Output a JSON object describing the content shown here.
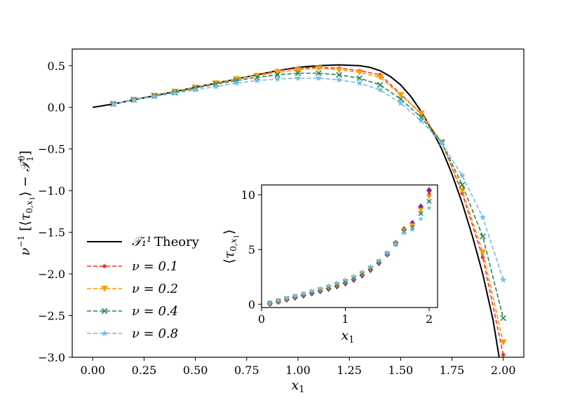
{
  "chart_data": [
    {
      "type": "line",
      "name": "main",
      "xlabel": "x₁",
      "ylabel": "ν⁻¹ [⟨τ₀,ₓ₁⟩ − 𝒯₁⁰]",
      "xlim": [
        -0.1,
        2.1
      ],
      "ylim": [
        -3.0,
        0.7
      ],
      "xticks": [
        0.0,
        0.25,
        0.5,
        0.75,
        1.0,
        1.25,
        1.5,
        1.75,
        2.0
      ],
      "xtick_labels": [
        "0.00",
        "0.25",
        "0.50",
        "0.75",
        "1.00",
        "1.25",
        "1.50",
        "1.75",
        "2.00"
      ],
      "yticks": [
        0.5,
        0.0,
        -0.5,
        -1.0,
        -1.5,
        -2.0,
        -2.5,
        -3.0
      ],
      "ytick_labels": [
        "0.5",
        "0.0",
        "−0.5",
        "−1.0",
        "−1.5",
        "−2.0",
        "−2.5",
        "−3.0"
      ],
      "theory": {
        "name": "𝒯₁¹ Theory",
        "legend_symbol": "𝒯₁¹",
        "legend_word": "Theory",
        "color": "#000000",
        "x": [
          0.0,
          0.1,
          0.2,
          0.3,
          0.4,
          0.5,
          0.6,
          0.7,
          0.8,
          0.9,
          1.0,
          1.1,
          1.2,
          1.3,
          1.35,
          1.4,
          1.45,
          1.5,
          1.55,
          1.6,
          1.65,
          1.7,
          1.75,
          1.8,
          1.85,
          1.9,
          1.95,
          1.98
        ],
        "y": [
          0.0,
          0.04,
          0.09,
          0.14,
          0.19,
          0.24,
          0.29,
          0.34,
          0.39,
          0.44,
          0.48,
          0.5,
          0.51,
          0.5,
          0.48,
          0.44,
          0.37,
          0.27,
          0.13,
          -0.05,
          -0.26,
          -0.5,
          -0.8,
          -1.15,
          -1.55,
          -2.0,
          -2.55,
          -3.0
        ]
      },
      "series": [
        {
          "name": "ν = 0.1",
          "legend_label": "ν = 0.1",
          "color": "#ee3322",
          "marker": "dot",
          "x": [
            0.1,
            0.2,
            0.3,
            0.4,
            0.5,
            0.6,
            0.7,
            0.8,
            0.9,
            1.0,
            1.1,
            1.2,
            1.3,
            1.4,
            1.5,
            1.6,
            1.7,
            1.8,
            1.9,
            2.0
          ],
          "y": [
            0.04,
            0.09,
            0.14,
            0.19,
            0.24,
            0.29,
            0.34,
            0.39,
            0.44,
            0.47,
            0.48,
            0.47,
            0.44,
            0.39,
            0.16,
            -0.08,
            -0.42,
            -1.03,
            -1.8,
            -2.97
          ]
        },
        {
          "name": "ν = 0.2",
          "legend_label": "ν = 0.2",
          "color": "#ff9900",
          "marker": "triangle-down",
          "x": [
            0.1,
            0.2,
            0.3,
            0.4,
            0.5,
            0.6,
            0.7,
            0.8,
            0.9,
            1.0,
            1.1,
            1.2,
            1.3,
            1.4,
            1.5,
            1.6,
            1.7,
            1.8,
            1.9,
            2.0
          ],
          "y": [
            0.04,
            0.09,
            0.14,
            0.19,
            0.24,
            0.29,
            0.34,
            0.38,
            0.42,
            0.45,
            0.47,
            0.45,
            0.42,
            0.36,
            0.15,
            -0.07,
            -0.42,
            -1.0,
            -1.74,
            -2.82
          ]
        },
        {
          "name": "ν = 0.4",
          "legend_label": "ν = 0.4",
          "color": "#228855",
          "marker": "x",
          "x": [
            0.1,
            0.2,
            0.3,
            0.4,
            0.5,
            0.6,
            0.7,
            0.8,
            0.9,
            1.0,
            1.1,
            1.2,
            1.3,
            1.4,
            1.5,
            1.6,
            1.7,
            1.8,
            1.9,
            2.0
          ],
          "y": [
            0.04,
            0.09,
            0.14,
            0.18,
            0.23,
            0.28,
            0.32,
            0.36,
            0.39,
            0.41,
            0.41,
            0.39,
            0.35,
            0.27,
            0.1,
            -0.12,
            -0.42,
            -0.93,
            -1.55,
            -2.53
          ]
        },
        {
          "name": "ν = 0.8",
          "legend_label": "ν = 0.8",
          "color": "#77bbee",
          "marker": "star",
          "x": [
            0.1,
            0.2,
            0.3,
            0.4,
            0.5,
            0.6,
            0.7,
            0.8,
            0.9,
            1.0,
            1.1,
            1.2,
            1.3,
            1.4,
            1.5,
            1.6,
            1.7,
            1.8,
            1.9,
            2.0
          ],
          "y": [
            0.04,
            0.09,
            0.13,
            0.17,
            0.21,
            0.25,
            0.29,
            0.32,
            0.34,
            0.35,
            0.35,
            0.33,
            0.29,
            0.21,
            0.05,
            -0.16,
            -0.43,
            -0.82,
            -1.32,
            -2.07
          ]
        }
      ]
    },
    {
      "type": "scatter",
      "name": "inset",
      "xlabel": "x₁",
      "ylabel": "⟨τ₀,ₓ₁⟩",
      "xlim": [
        0.0,
        2.1
      ],
      "ylim": [
        -0.3,
        10.9
      ],
      "xticks": [
        0,
        1,
        2
      ],
      "xtick_labels": [
        "0",
        "1",
        "2"
      ],
      "yticks": [
        0,
        5,
        10
      ],
      "ytick_labels": [
        "0",
        "5",
        "10"
      ],
      "series": [
        {
          "name": "ν = 0",
          "color": "#7b2d8e",
          "marker": "diamond",
          "x": [
            0.1,
            0.2,
            0.3,
            0.4,
            0.5,
            0.6,
            0.7,
            0.8,
            0.9,
            1.0,
            1.1,
            1.2,
            1.3,
            1.4,
            1.5,
            1.6,
            1.7,
            1.8,
            1.9,
            2.0
          ],
          "y": [
            0.07,
            0.26,
            0.45,
            0.64,
            0.83,
            1.02,
            1.22,
            1.43,
            1.66,
            1.93,
            2.26,
            2.66,
            3.16,
            3.79,
            4.58,
            5.57,
            6.83,
            7.4,
            8.9,
            10.4
          ]
        },
        {
          "name": "ν = 0.1",
          "color": "#ee3322",
          "marker": "dot",
          "x": [
            0.1,
            0.2,
            0.3,
            0.4,
            0.5,
            0.6,
            0.7,
            0.8,
            0.9,
            1.0,
            1.1,
            1.2,
            1.3,
            1.4,
            1.5,
            1.6,
            1.7,
            1.8,
            1.9,
            2.0
          ],
          "y": [
            0.08,
            0.27,
            0.46,
            0.66,
            0.85,
            1.05,
            1.25,
            1.47,
            1.7,
            1.98,
            2.31,
            2.71,
            3.21,
            3.83,
            4.6,
            5.56,
            6.79,
            7.3,
            8.7,
            10.1
          ]
        },
        {
          "name": "ν = 0.2",
          "color": "#ff9900",
          "marker": "triangle-down",
          "x": [
            0.1,
            0.2,
            0.3,
            0.4,
            0.5,
            0.6,
            0.7,
            0.8,
            0.9,
            1.0,
            1.1,
            1.2,
            1.3,
            1.4,
            1.5,
            1.6,
            1.7,
            1.8,
            1.9,
            2.0
          ],
          "y": [
            0.08,
            0.28,
            0.48,
            0.68,
            0.88,
            1.08,
            1.28,
            1.51,
            1.75,
            2.02,
            2.35,
            2.75,
            3.24,
            3.86,
            4.61,
            5.56,
            6.75,
            7.2,
            8.6,
            9.8
          ]
        },
        {
          "name": "ν = 0.4",
          "color": "#228855",
          "marker": "x",
          "x": [
            0.1,
            0.2,
            0.3,
            0.4,
            0.5,
            0.6,
            0.7,
            0.8,
            0.9,
            1.0,
            1.1,
            1.2,
            1.3,
            1.4,
            1.5,
            1.6,
            1.7,
            1.8,
            1.9,
            2.0
          ],
          "y": [
            0.09,
            0.3,
            0.51,
            0.71,
            0.92,
            1.13,
            1.35,
            1.57,
            1.82,
            2.09,
            2.42,
            2.81,
            3.3,
            3.9,
            4.62,
            5.52,
            6.66,
            7.0,
            8.3,
            9.4
          ]
        },
        {
          "name": "ν = 0.8",
          "color": "#77bbee",
          "marker": "star",
          "x": [
            0.1,
            0.2,
            0.3,
            0.4,
            0.5,
            0.6,
            0.7,
            0.8,
            0.9,
            1.0,
            1.1,
            1.2,
            1.3,
            1.4,
            1.5,
            1.6,
            1.7,
            1.8,
            1.9,
            2.0
          ],
          "y": [
            0.11,
            0.34,
            0.56,
            0.78,
            1.0,
            1.22,
            1.45,
            1.69,
            1.95,
            2.23,
            2.56,
            2.96,
            3.43,
            4.0,
            4.68,
            5.5,
            6.5,
            6.8,
            7.8,
            8.8
          ]
        }
      ]
    }
  ],
  "colors": {
    "axes": "#000000",
    "background": "#ffffff"
  }
}
